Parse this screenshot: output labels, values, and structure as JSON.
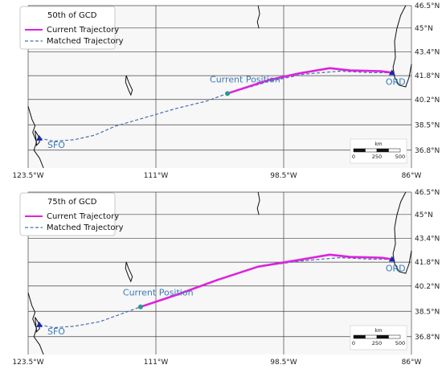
{
  "map_extent": {
    "lon": [
      -123.5,
      -86.0
    ],
    "lat": [
      35.6,
      46.5
    ]
  },
  "axes": {
    "lon_ticks": [
      {
        "value": -123.5,
        "label": "123.5°W"
      },
      {
        "value": -111.0,
        "label": "111°W"
      },
      {
        "value": -98.5,
        "label": "98.5°W"
      },
      {
        "value": -86.0,
        "label": "86°W"
      }
    ],
    "lat_ticks": [
      {
        "value": 36.8,
        "label": "36.8°N"
      },
      {
        "value": 38.5,
        "label": "38.5°N"
      },
      {
        "value": 40.2,
        "label": "40.2°N"
      },
      {
        "value": 41.8,
        "label": "41.8°N"
      },
      {
        "value": 43.4,
        "label": "43.4°N"
      },
      {
        "value": 45.0,
        "label": "45°N"
      },
      {
        "value": 46.5,
        "label": "46.5°N"
      }
    ]
  },
  "airports": [
    {
      "code": "SFO",
      "lon": -122.4,
      "lat": 37.6
    },
    {
      "code": "ORD",
      "lon": -87.9,
      "lat": 42.0
    }
  ],
  "colors": {
    "current": "#dd22dd",
    "matched": "#4a6fb0",
    "label": "#3a7ab8",
    "marker": "#2a9a8a",
    "airport": "#1a2aa8",
    "grid": "#444444",
    "map_bg": "#f7f7f7"
  },
  "legend_entries": {
    "current": "Current Trajectory",
    "matched": "Matched Trajectory"
  },
  "scalebar": {
    "unit": "km",
    "ticks": [
      "0",
      "250",
      "500"
    ]
  },
  "panels": [
    {
      "id": "panel-50",
      "legend_title": "50th of GCD",
      "current_position_label": "Current Position",
      "current_position": {
        "lon": -104.0,
        "lat": 40.6
      },
      "matched": [
        [
          -122.4,
          37.6
        ],
        [
          -121.0,
          37.4
        ],
        [
          -119.0,
          37.5
        ],
        [
          -117.0,
          37.8
        ],
        [
          -115.0,
          38.4
        ],
        [
          -112.0,
          39.0
        ],
        [
          -109.0,
          39.6
        ],
        [
          -106.0,
          40.1
        ],
        [
          -104.0,
          40.6
        ],
        [
          -100.0,
          41.4
        ],
        [
          -96.5,
          41.9
        ],
        [
          -93.0,
          42.1
        ],
        [
          -90.0,
          42.0
        ],
        [
          -87.9,
          42.0
        ]
      ],
      "current": [
        [
          -104.0,
          40.6
        ],
        [
          -100.0,
          41.5
        ],
        [
          -97.0,
          41.95
        ],
        [
          -94.0,
          42.3
        ],
        [
          -92.0,
          42.15
        ],
        [
          -89.0,
          42.1
        ],
        [
          -87.9,
          42.0
        ]
      ]
    },
    {
      "id": "panel-75",
      "legend_title": "75th of GCD",
      "current_position_label": "Current Position",
      "current_position": {
        "lon": -112.5,
        "lat": 38.8
      },
      "matched": [
        [
          -122.4,
          37.6
        ],
        [
          -121.0,
          37.4
        ],
        [
          -119.0,
          37.5
        ],
        [
          -116.5,
          37.8
        ],
        [
          -114.5,
          38.3
        ],
        [
          -112.5,
          38.8
        ],
        [
          -109.0,
          39.6
        ],
        [
          -105.0,
          40.6
        ],
        [
          -101.0,
          41.5
        ],
        [
          -96.5,
          41.9
        ],
        [
          -93.0,
          42.1
        ],
        [
          -90.0,
          42.0
        ],
        [
          -87.9,
          42.0
        ]
      ],
      "current": [
        [
          -112.5,
          38.8
        ],
        [
          -109.0,
          39.6
        ],
        [
          -105.0,
          40.6
        ],
        [
          -101.0,
          41.5
        ],
        [
          -97.0,
          41.95
        ],
        [
          -94.0,
          42.3
        ],
        [
          -92.0,
          42.15
        ],
        [
          -89.0,
          42.1
        ],
        [
          -87.9,
          42.0
        ]
      ]
    }
  ]
}
